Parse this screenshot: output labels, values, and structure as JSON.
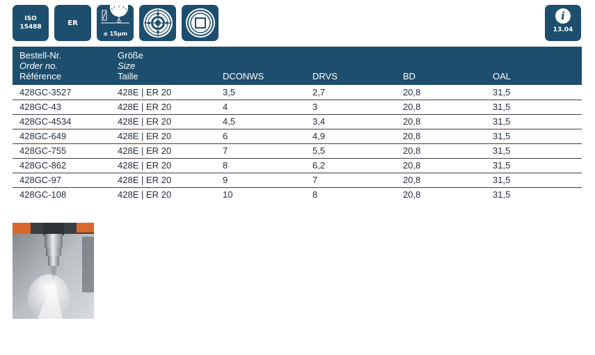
{
  "badges": {
    "iso": {
      "line1": "ISO",
      "line2": "15488"
    },
    "er": "ER",
    "runout": "≤ 15µm"
  },
  "info": {
    "code": "13.04",
    "icon": "info-icon"
  },
  "table": {
    "headers": [
      {
        "de": "Bestell-Nr.",
        "en": "Order no.",
        "fr": "Référence"
      },
      {
        "de": "Größe",
        "en": "Size",
        "fr": "Taille"
      },
      {
        "label": "DCONWS"
      },
      {
        "label": "DRVS"
      },
      {
        "label": "BD"
      },
      {
        "label": "OAL"
      }
    ],
    "rows": [
      [
        "428GC-3527",
        "428E | ER 20",
        "3,5",
        "2,7",
        "20,8",
        "31,5"
      ],
      [
        "428GC-43",
        "428E | ER 20",
        "4",
        "3",
        "20,8",
        "31,5"
      ],
      [
        "428GC-4534",
        "428E | ER 20",
        "4,5",
        "3,4",
        "20,8",
        "31,5"
      ],
      [
        "428GC-649",
        "428E | ER 20",
        "6",
        "4,9",
        "20,8",
        "31,5"
      ],
      [
        "428GC-755",
        "428E | ER 20",
        "7",
        "5,5",
        "20,8",
        "31,5"
      ],
      [
        "428GC-862",
        "428E | ER 20",
        "8",
        "6,2",
        "20,8",
        "31,5"
      ],
      [
        "428GC-97",
        "428E | ER 20",
        "9",
        "7",
        "20,8",
        "31,5"
      ],
      [
        "428GC-108",
        "428E | ER 20",
        "10",
        "8",
        "20,8",
        "31,5"
      ]
    ]
  },
  "colors": {
    "brand": "#1d4e6e",
    "row_rule": "#3a3f44"
  }
}
